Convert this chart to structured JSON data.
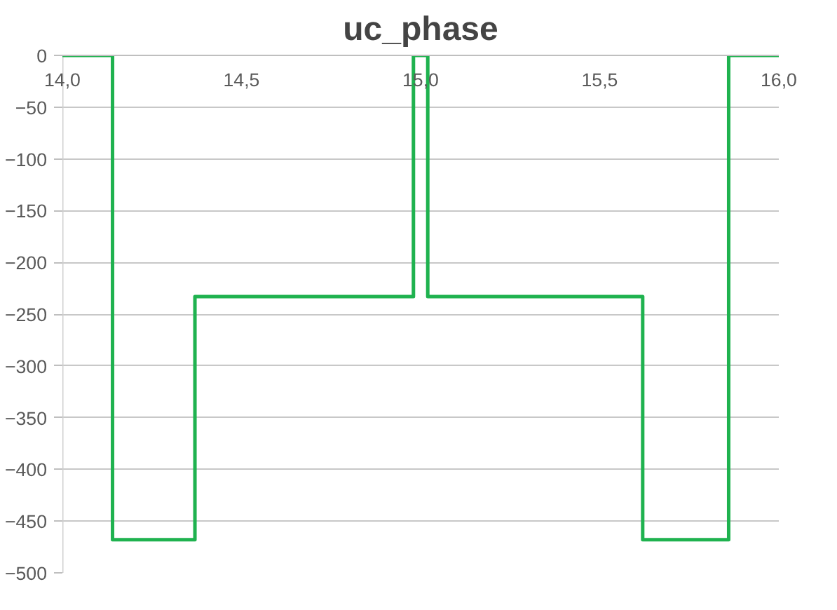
{
  "chart_data": {
    "type": "line",
    "title": "uc_phase",
    "x": [
      14.0,
      14.14,
      14.14,
      14.37,
      14.37,
      14.98,
      14.98,
      15.02,
      15.02,
      15.62,
      15.62,
      15.86,
      15.86,
      16.0
    ],
    "series": [
      {
        "color": "#1fb24f",
        "values": [
          0,
          0,
          -468,
          -468,
          -233,
          -233,
          0,
          0,
          -233,
          -233,
          -468,
          -468,
          0,
          0
        ]
      }
    ],
    "xlim": [
      14.0,
      16.0
    ],
    "xticks": [
      {
        "value": 14.0,
        "label": "14,0"
      },
      {
        "value": 14.5,
        "label": "14,5"
      },
      {
        "value": 15.0,
        "label": "15,0"
      },
      {
        "value": 15.5,
        "label": "15,5"
      },
      {
        "value": 16.0,
        "label": "16,0"
      }
    ],
    "ylim": [
      -500,
      0
    ],
    "yticks": [
      0,
      -50,
      -100,
      -150,
      -200,
      -250,
      -300,
      -350,
      -400,
      -450,
      -500
    ],
    "grid": "y",
    "marker": "none",
    "line_style": "solid"
  }
}
